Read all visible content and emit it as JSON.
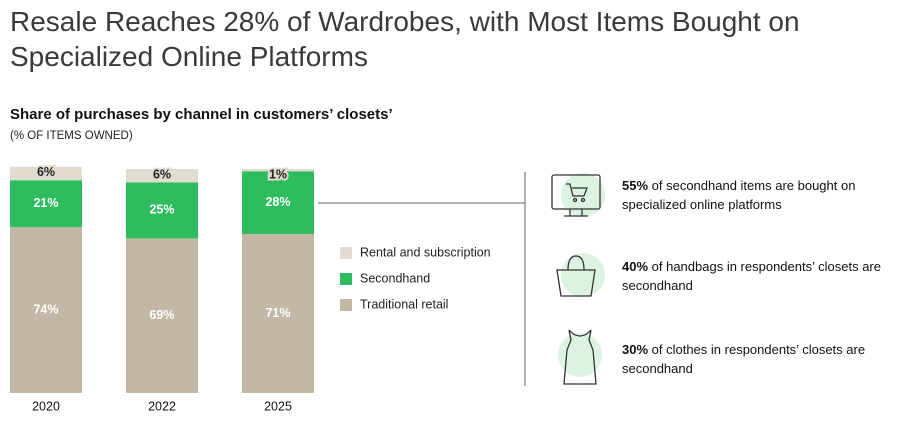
{
  "chart_data": {
    "type": "stacked-bar",
    "title": "Resale Reaches 28% of Wardrobes, with Most Items Bought on Specialized Online Platforms",
    "subtitle": "Share of purchases by channel in customers’ closets’",
    "note": "(% OF ITEMS OWNED)",
    "categories": [
      "2020",
      "2022",
      "2025"
    ],
    "series": [
      {
        "name": "Rental and subscription",
        "color": "#e2dbd2",
        "values": [
          6,
          6,
          1
        ],
        "value_labels": [
          "6%",
          "6%",
          "1%"
        ]
      },
      {
        "name": "Secondhand",
        "color": "#2dbd5e",
        "values": [
          21,
          25,
          28
        ],
        "value_labels": [
          "21%",
          "25%",
          "28%"
        ]
      },
      {
        "name": "Traditional retail",
        "color": "#c3b7a5",
        "values": [
          74,
          69,
          71
        ],
        "value_labels": [
          "74%",
          "69%",
          "71%"
        ]
      }
    ]
  },
  "callouts": [
    {
      "highlight": "55%",
      "text": " of secondhand items are bought on specialized online platforms"
    },
    {
      "highlight": "40%",
      "text": " of handbags in respondents’ closets are secondhand"
    },
    {
      "highlight": "30%",
      "text": " of clothes in respondents’ closets are secondhand"
    }
  ]
}
